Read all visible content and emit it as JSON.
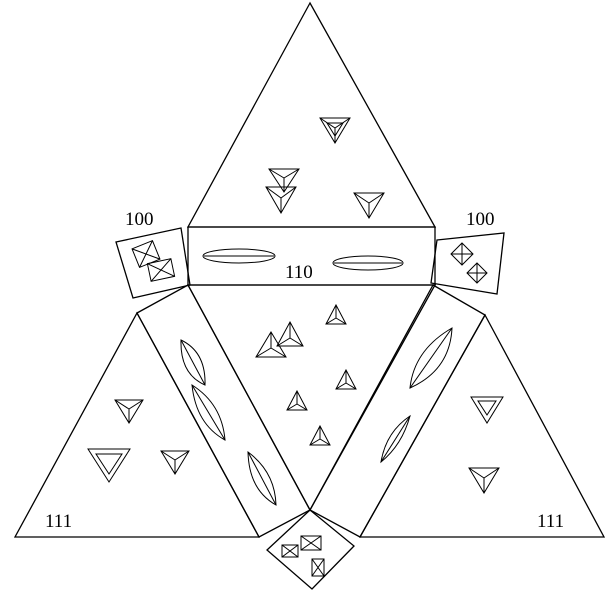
{
  "labels": {
    "face_100_left": "100",
    "face_100_right": "100",
    "face_110_center": "110",
    "face_111_left": "111",
    "face_111_right": "111"
  },
  "colors": {
    "stroke": "#000000",
    "background": "#ffffff"
  }
}
